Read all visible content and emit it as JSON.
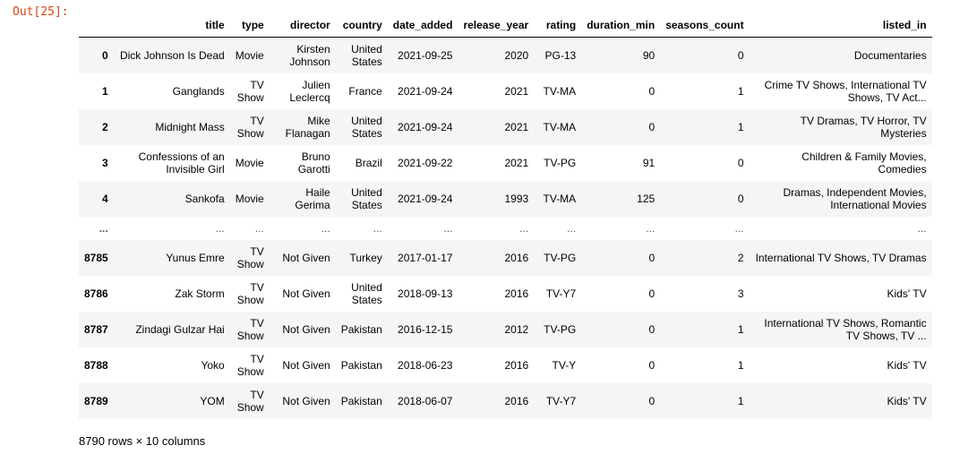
{
  "prompt": "Out[25]:",
  "columns": [
    "",
    "title",
    "type",
    "director",
    "country",
    "date_added",
    "release_year",
    "rating",
    "duration_min",
    "seasons_count",
    "listed_in"
  ],
  "rows": [
    {
      "index": "0",
      "title": "Dick Johnson Is Dead",
      "type": "Movie",
      "director": "Kirsten Johnson",
      "country": "United States",
      "date_added": "2021-09-25",
      "release_year": "2020",
      "rating": "PG-13",
      "duration_min": "90",
      "seasons_count": "0",
      "listed_in": "Documentaries"
    },
    {
      "index": "1",
      "title": "Ganglands",
      "type": "TV Show",
      "director": "Julien Leclercq",
      "country": "France",
      "date_added": "2021-09-24",
      "release_year": "2021",
      "rating": "TV-MA",
      "duration_min": "0",
      "seasons_count": "1",
      "listed_in": "Crime TV Shows, International TV Shows, TV Act..."
    },
    {
      "index": "2",
      "title": "Midnight Mass",
      "type": "TV Show",
      "director": "Mike Flanagan",
      "country": "United States",
      "date_added": "2021-09-24",
      "release_year": "2021",
      "rating": "TV-MA",
      "duration_min": "0",
      "seasons_count": "1",
      "listed_in": "TV Dramas, TV Horror, TV Mysteries"
    },
    {
      "index": "3",
      "title": "Confessions of an Invisible Girl",
      "type": "Movie",
      "director": "Bruno Garotti",
      "country": "Brazil",
      "date_added": "2021-09-22",
      "release_year": "2021",
      "rating": "TV-PG",
      "duration_min": "91",
      "seasons_count": "0",
      "listed_in": "Children & Family Movies, Comedies"
    },
    {
      "index": "4",
      "title": "Sankofa",
      "type": "Movie",
      "director": "Haile Gerima",
      "country": "United States",
      "date_added": "2021-09-24",
      "release_year": "1993",
      "rating": "TV-MA",
      "duration_min": "125",
      "seasons_count": "0",
      "listed_in": "Dramas, Independent Movies, International Movies"
    },
    {
      "index": "...",
      "title": "...",
      "type": "...",
      "director": "...",
      "country": "...",
      "date_added": "...",
      "release_year": "...",
      "rating": "...",
      "duration_min": "...",
      "seasons_count": "...",
      "listed_in": "..."
    },
    {
      "index": "8785",
      "title": "Yunus Emre",
      "type": "TV Show",
      "director": "Not Given",
      "country": "Turkey",
      "date_added": "2017-01-17",
      "release_year": "2016",
      "rating": "TV-PG",
      "duration_min": "0",
      "seasons_count": "2",
      "listed_in": "International TV Shows, TV Dramas"
    },
    {
      "index": "8786",
      "title": "Zak Storm",
      "type": "TV Show",
      "director": "Not Given",
      "country": "United States",
      "date_added": "2018-09-13",
      "release_year": "2016",
      "rating": "TV-Y7",
      "duration_min": "0",
      "seasons_count": "3",
      "listed_in": "Kids' TV"
    },
    {
      "index": "8787",
      "title": "Zindagi Gulzar Hai",
      "type": "TV Show",
      "director": "Not Given",
      "country": "Pakistan",
      "date_added": "2016-12-15",
      "release_year": "2012",
      "rating": "TV-PG",
      "duration_min": "0",
      "seasons_count": "1",
      "listed_in": "International TV Shows, Romantic TV Shows, TV ..."
    },
    {
      "index": "8788",
      "title": "Yoko",
      "type": "TV Show",
      "director": "Not Given",
      "country": "Pakistan",
      "date_added": "2018-06-23",
      "release_year": "2016",
      "rating": "TV-Y",
      "duration_min": "0",
      "seasons_count": "1",
      "listed_in": "Kids' TV"
    },
    {
      "index": "8789",
      "title": "YOM",
      "type": "TV Show",
      "director": "Not Given",
      "country": "Pakistan",
      "date_added": "2018-06-07",
      "release_year": "2016",
      "rating": "TV-Y7",
      "duration_min": "0",
      "seasons_count": "1",
      "listed_in": "Kids' TV"
    }
  ],
  "footer": "8790 rows × 10 columns"
}
